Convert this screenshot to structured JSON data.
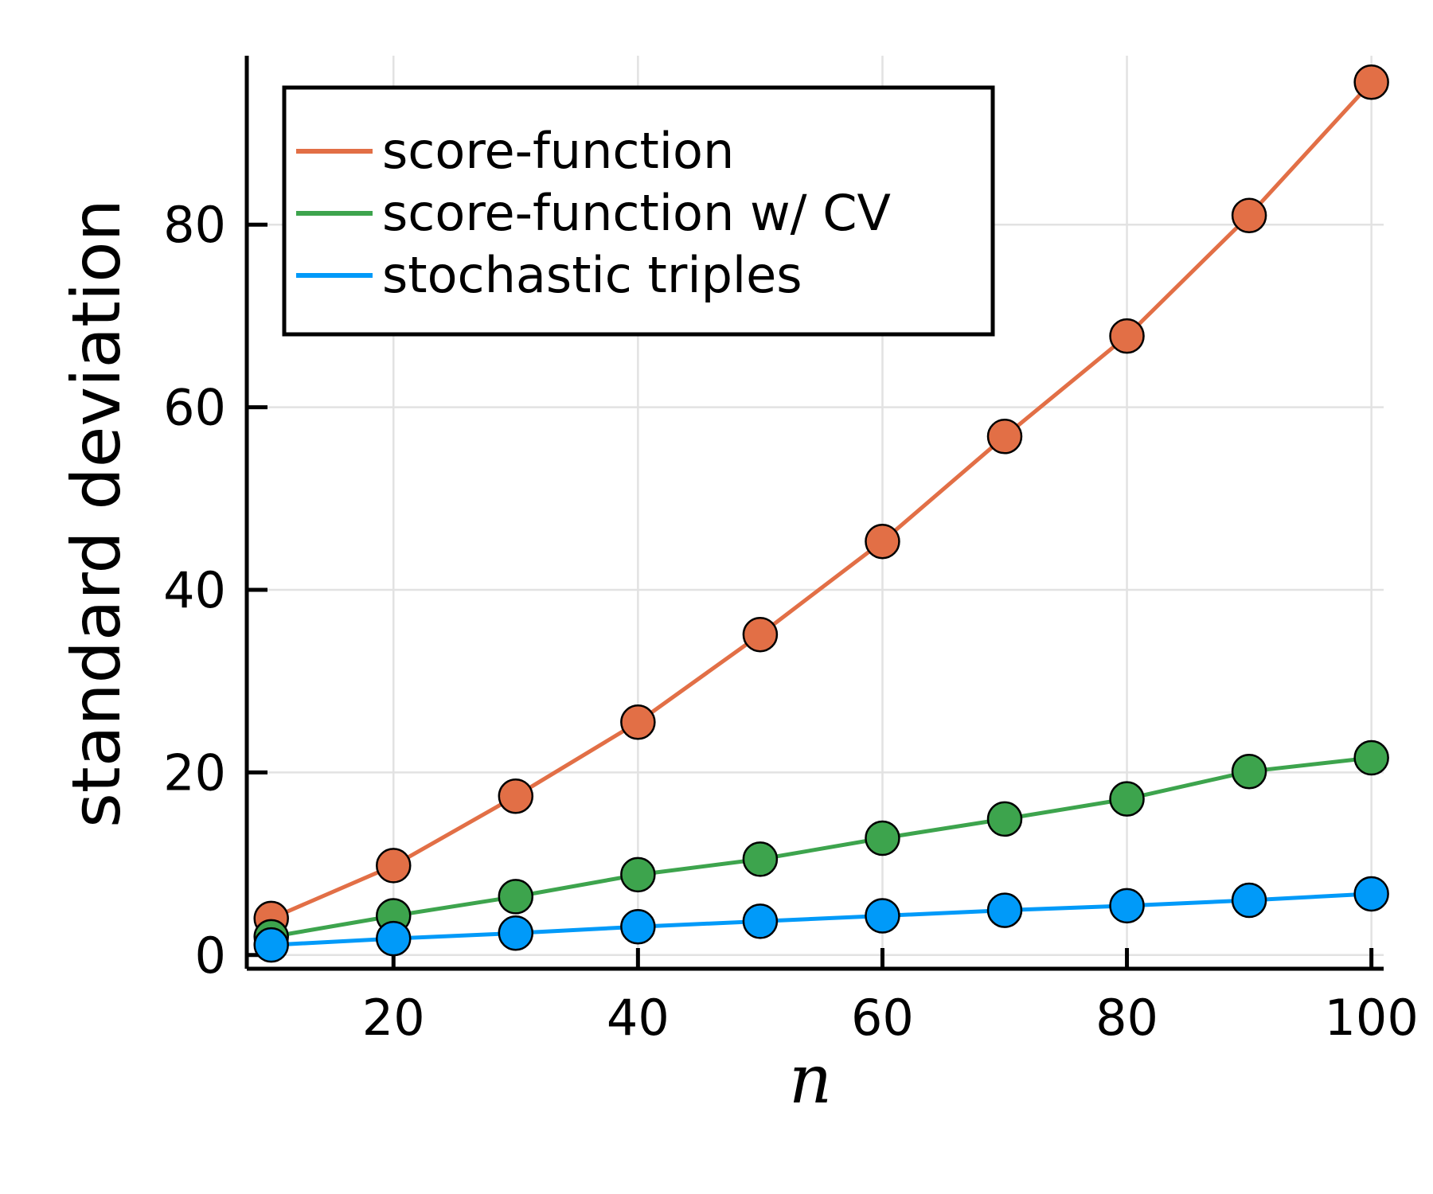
{
  "chart_data": {
    "type": "line",
    "title": "",
    "xlabel": "n",
    "ylabel": "standard deviation",
    "xlim": [
      8,
      101
    ],
    "ylim": [
      -1.5,
      98.5
    ],
    "xticks": [
      20,
      40,
      60,
      80,
      100
    ],
    "yticks": [
      0,
      20,
      40,
      60,
      80
    ],
    "grid": true,
    "legend_position": "top-left",
    "x": [
      10,
      20,
      30,
      40,
      50,
      60,
      70,
      80,
      90,
      100
    ],
    "series": [
      {
        "name": "score-function",
        "color": "#e26f46",
        "values": [
          4.0,
          9.8,
          17.4,
          25.5,
          35.1,
          45.3,
          56.8,
          67.8,
          81.0,
          95.6
        ]
      },
      {
        "name": "score-function w/ CV",
        "color": "#3da44d",
        "values": [
          2.0,
          4.3,
          6.4,
          8.8,
          10.5,
          12.8,
          14.9,
          17.1,
          20.1,
          21.6
        ]
      },
      {
        "name": "stochastic triples",
        "color": "#009af9",
        "values": [
          1.1,
          1.8,
          2.4,
          3.1,
          3.7,
          4.3,
          4.9,
          5.4,
          6.0,
          6.7
        ]
      }
    ]
  }
}
